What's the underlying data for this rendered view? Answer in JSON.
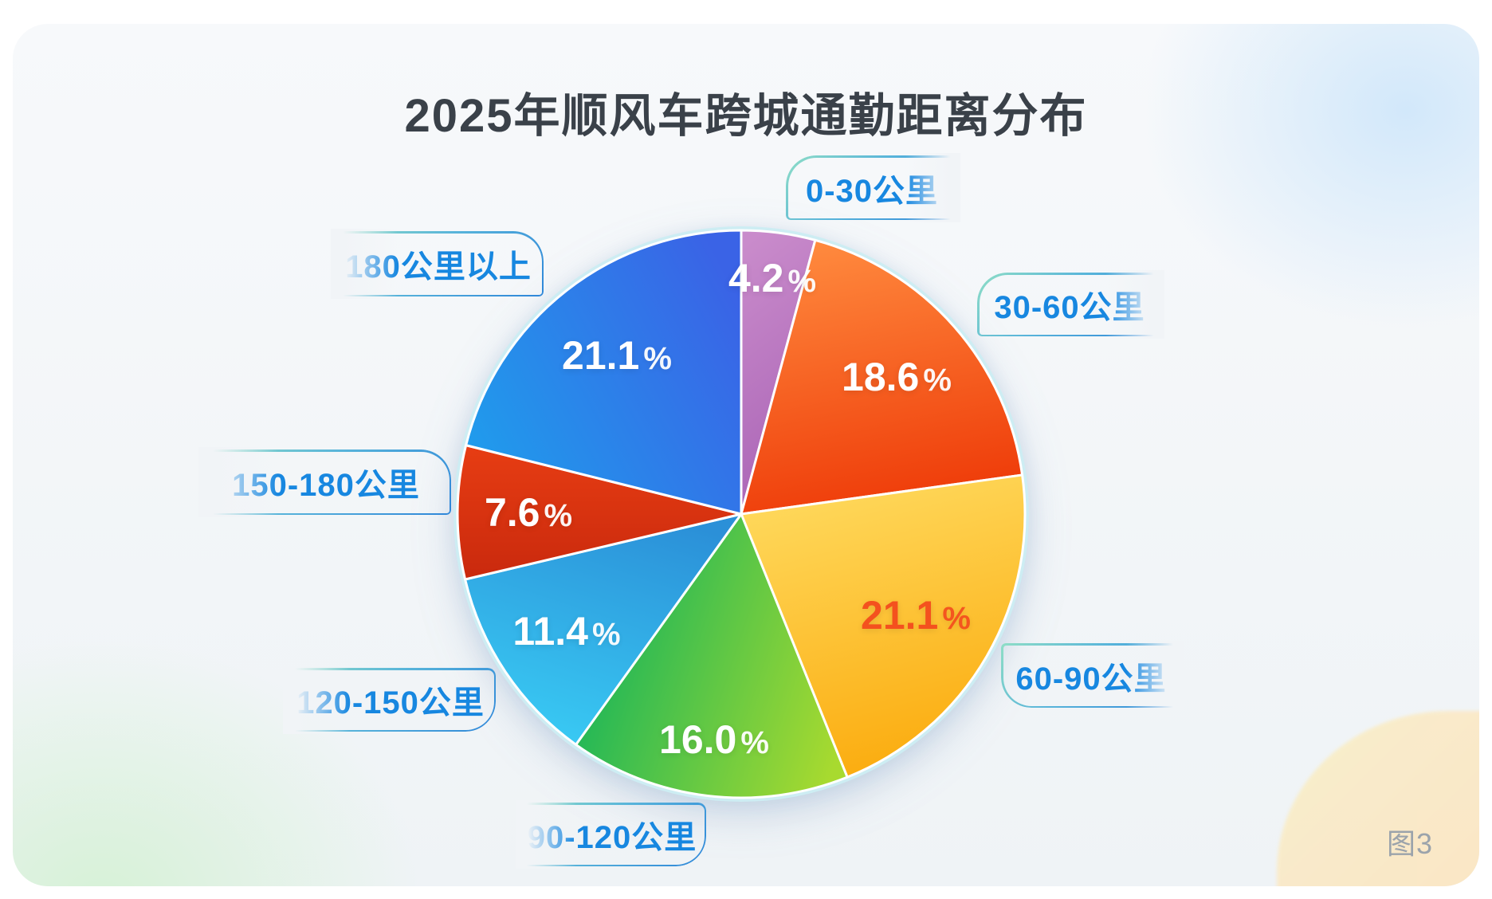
{
  "title": "2025年顺风车跨城通勤距离分布",
  "figure_badge": "图3",
  "chart_data": {
    "type": "pie",
    "title": "2025年顺风车跨城通勤距离分布",
    "unit": "%",
    "start_angle_deg": 0,
    "direction": "clockwise",
    "legend_position": "callouts-around-pie",
    "categories": [
      "0-30公里",
      "30-60公里",
      "60-90公里",
      "90-120公里",
      "120-150公里",
      "150-180公里",
      "180公里以上"
    ],
    "values": [
      4.2,
      18.6,
      21.1,
      16.0,
      11.4,
      7.6,
      21.1
    ],
    "slices": [
      {
        "label": "0-30公里",
        "value": 4.2,
        "pct_text": "4.2",
        "colors": [
          "#C98BCB",
          "#A963B5"
        ],
        "grad": [
          0.3,
          0,
          0.5,
          1
        ],
        "label_color": "#FFFFFF",
        "label_r": 0.84
      },
      {
        "label": "30-60公里",
        "value": 18.6,
        "pct_text": "18.6",
        "colors": [
          "#FF8A3E",
          "#EE3A08"
        ],
        "grad": [
          0.3,
          0,
          0.5,
          1
        ],
        "label_color": "#FFFFFF",
        "label_r": 0.73
      },
      {
        "label": "60-90公里",
        "value": 21.1,
        "pct_text": "21.1",
        "colors": [
          "#FFDB60",
          "#FBAC0F"
        ],
        "grad": [
          0.2,
          0,
          0.45,
          1
        ],
        "label_color": "#F4511E",
        "label_r": 0.71
      },
      {
        "label": "90-120公里",
        "value": 16.0,
        "pct_text": "16.0",
        "colors": [
          "#12B35C",
          "#A8DA2F"
        ],
        "grad": [
          0,
          0.4,
          1,
          0.75
        ],
        "label_color": "#FFFFFF",
        "label_r": 0.8
      },
      {
        "label": "120-150公里",
        "value": 11.4,
        "pct_text": "11.4",
        "colors": [
          "#2B90D8",
          "#39CBF4"
        ],
        "grad": [
          0.7,
          0,
          0.3,
          1
        ],
        "label_color": "#FFFFFF",
        "label_r": 0.74
      },
      {
        "label": "150-180公里",
        "value": 7.6,
        "pct_text": "7.6",
        "colors": [
          "#E73D13",
          "#C9290D"
        ],
        "grad": [
          0.5,
          0,
          0.5,
          1
        ],
        "label_color": "#FFFFFF",
        "label_r": 0.75
      },
      {
        "label": "180公里以上",
        "value": 21.1,
        "pct_text": "21.1",
        "colors": [
          "#3A63E6",
          "#1F9DEC"
        ],
        "grad": [
          1,
          0.25,
          0,
          0.8
        ],
        "label_color": "#FFFFFF",
        "label_r": 0.71
      }
    ],
    "accent_colors": {
      "callout_text": "#1787E0",
      "callout_border_from": "#8FDEC6",
      "callout_border_to": "#2E86D9",
      "title_color": "#3A4149",
      "badge_color": "#9BA3AB"
    }
  }
}
